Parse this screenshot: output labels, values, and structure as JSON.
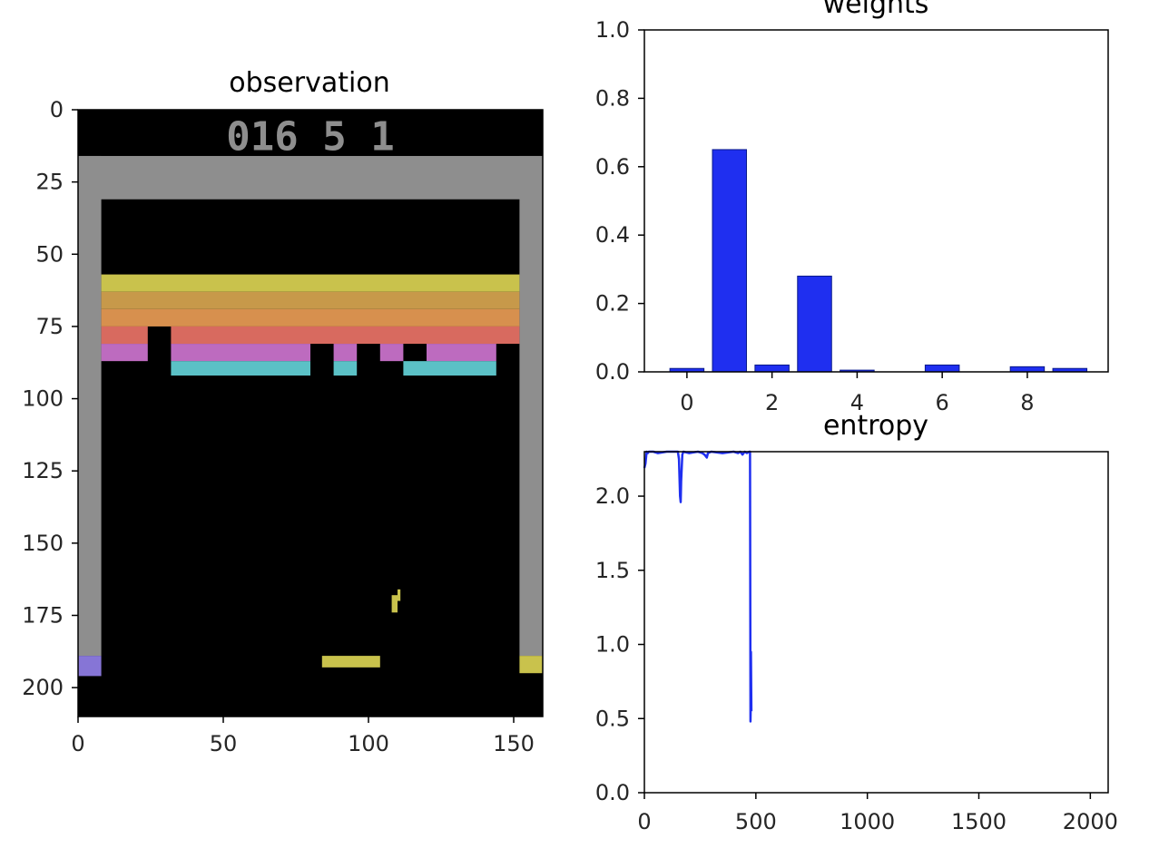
{
  "chart_data": [
    {
      "type": "image",
      "title": "observation",
      "xlim": [
        0,
        160
      ],
      "ylim": [
        210,
        0
      ],
      "xticks": [
        "0",
        "50",
        "100",
        "150"
      ],
      "yticks": [
        "0",
        "25",
        "50",
        "75",
        "100",
        "125",
        "150",
        "175",
        "200"
      ],
      "score_display": "016  5  1",
      "colors": {
        "background": "#000000",
        "wall": "#8e8e8e",
        "row_yellow": "#c9c24c",
        "row_orange": "#c7994a",
        "row_tan": "#d7904e",
        "row_red": "#d86a5f",
        "row_pink": "#bd6bbf",
        "row_cyan": "#5bc1c6",
        "paddle": "#c9c24c",
        "ball": "#c9c24c",
        "wall_left_bottom": "#8675d6",
        "wall_right_bottom": "#c9c24c"
      }
    },
    {
      "type": "bar",
      "title": "weights",
      "x": [
        0,
        1,
        2,
        3,
        4,
        5,
        6,
        7,
        8,
        9
      ],
      "values": [
        0.01,
        0.65,
        0.02,
        0.28,
        0.005,
        0.0,
        0.02,
        0.0,
        0.015,
        0.01
      ],
      "xlim": [
        -1,
        9.9
      ],
      "ylim": [
        0,
        1.0
      ],
      "xticks": [
        "0",
        "2",
        "4",
        "6",
        "8"
      ],
      "yticks": [
        "0.0",
        "0.2",
        "0.4",
        "0.6",
        "0.8",
        "1.0"
      ],
      "color": "#1f2ff0"
    },
    {
      "type": "line",
      "title": "entropy",
      "xlim": [
        0,
        2080
      ],
      "ylim": [
        0,
        2.3
      ],
      "xticks": [
        "0",
        "500",
        "1000",
        "1500",
        "2000"
      ],
      "yticks": [
        "0.0",
        "0.5",
        "1.0",
        "1.5",
        "2.0"
      ],
      "color": "#1f2ff0",
      "series": [
        {
          "x": [
            0,
            5,
            10,
            15,
            20,
            40,
            60,
            100,
            150,
            155,
            160,
            163,
            165,
            170,
            175,
            200,
            240,
            260,
            270,
            280,
            285,
            300,
            350,
            400,
            420,
            430,
            440,
            450,
            460,
            470,
            474,
            475,
            476,
            477,
            478,
            479,
            480
          ],
          "y": [
            2.19,
            2.22,
            2.3,
            2.29,
            2.3,
            2.3,
            2.29,
            2.3,
            2.3,
            2.25,
            2.0,
            1.96,
            2.1,
            2.28,
            2.3,
            2.29,
            2.3,
            2.29,
            2.28,
            2.26,
            2.29,
            2.3,
            2.29,
            2.3,
            2.29,
            2.3,
            2.28,
            2.3,
            2.29,
            2.3,
            2.3,
            1.2,
            0.48,
            0.6,
            0.95,
            0.7,
            0.55
          ]
        }
      ]
    }
  ]
}
